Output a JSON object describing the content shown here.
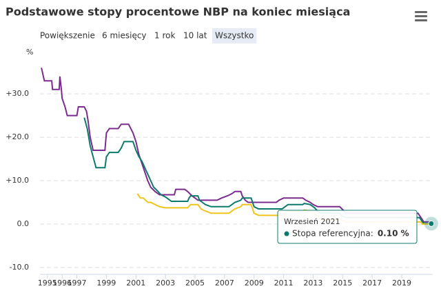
{
  "title": "Podstawowe stopy procentowe NBP na koniec miesiąca",
  "zoom": {
    "label": "Powiększenie",
    "buttons": [
      "6 miesięcy",
      "1 rok",
      "10 lat",
      "Wszystko"
    ],
    "selected": 3
  },
  "chart_data": {
    "type": "line",
    "y_label": "%",
    "xlim": [
      1994.5,
      2021.1
    ],
    "xticks": [
      1995,
      1996,
      1997,
      1999,
      2001,
      2003,
      2005,
      2007,
      2009,
      2011,
      2013,
      2015,
      2017,
      2019
    ],
    "ylim": [
      -12,
      37
    ],
    "yticks": [
      {
        "value": -10,
        "label": "-10.0"
      },
      {
        "value": 0,
        "label": "0.0"
      },
      {
        "value": 10,
        "label": "+10.0"
      },
      {
        "value": 20,
        "label": "+20.0"
      },
      {
        "value": 30,
        "label": "+30.0"
      }
    ],
    "grid": true,
    "series": [
      {
        "color": "#7b2b8f",
        "x": [
          1994.6,
          1994.8,
          1995.3,
          1995.35,
          1995.8,
          1995.85,
          1995.95,
          1996.0,
          1996.2,
          1996.35,
          1997.0,
          1997.1,
          1997.5,
          1997.65,
          1997.75,
          1997.9,
          1998.1,
          1998.9,
          1999.0,
          1999.2,
          1999.8,
          2000.0,
          2000.5,
          2000.8,
          2001.0,
          2001.2,
          2001.4,
          2001.6,
          2001.8,
          2002.0,
          2002.3,
          2002.6,
          2003.6,
          2003.7,
          2004.3,
          2004.5,
          2004.8,
          2005.2,
          2006.5,
          2006.8,
          2007.2,
          2007.5,
          2007.7,
          2008.1,
          2008.2,
          2008.4,
          2008.6,
          2010.5,
          2010.7,
          2011.0,
          2012.3,
          2012.5,
          2012.8,
          2013.0,
          2013.3,
          2014.8,
          2015.1,
          2015.2,
          2020.1,
          2020.3,
          2020.5,
          2021.0
        ],
        "values": [
          36,
          33,
          33,
          31,
          31,
          34,
          31,
          29,
          27,
          25,
          25,
          27,
          27,
          26,
          24,
          20,
          17,
          17,
          21,
          22,
          22,
          23,
          23,
          21,
          19,
          16,
          14,
          12,
          10,
          8.5,
          7.5,
          6.75,
          6.75,
          8,
          8,
          7.5,
          6.5,
          5.5,
          5.5,
          6,
          6.5,
          7,
          7.5,
          7.5,
          6.5,
          5.5,
          5,
          5,
          5.5,
          6,
          6,
          5.5,
          5,
          4.5,
          4,
          4,
          3,
          2.5,
          2.5,
          1.5,
          0.5,
          0.5
        ]
      },
      {
        "name": "Stopa referencyjna",
        "color": "#0b7a6b",
        "x": [
          1997.5,
          1997.7,
          1997.9,
          1998.1,
          1998.3,
          1998.9,
          1999.0,
          1999.2,
          1999.8,
          2000.0,
          2000.2,
          2000.8,
          2001.0,
          2001.2,
          2001.4,
          2001.6,
          2001.8,
          2002.0,
          2002.2,
          2002.5,
          2002.7,
          2003.0,
          2003.2,
          2003.4,
          2004.5,
          2004.6,
          2004.7,
          2005.2,
          2005.3,
          2005.5,
          2005.7,
          2006.1,
          2007.3,
          2007.5,
          2007.7,
          2008.1,
          2008.2,
          2008.8,
          2008.9,
          2009.0,
          2009.3,
          2010.9,
          2011.1,
          2011.3,
          2012.3,
          2012.4,
          2012.8,
          2013.0,
          2013.1,
          2013.3,
          2013.5,
          2014.8,
          2014.9,
          2015.2,
          2020.2,
          2020.3,
          2020.4,
          2020.5,
          2021.0
        ],
        "values": [
          24.5,
          22,
          18,
          15.5,
          13,
          13,
          15.5,
          16.5,
          16.5,
          17.5,
          19,
          19,
          17,
          15.5,
          14.5,
          13,
          11.5,
          10,
          8.5,
          7.5,
          6.75,
          6.25,
          5.75,
          5.25,
          5.25,
          6,
          6.5,
          6.5,
          5.5,
          5,
          4.5,
          4,
          4,
          4.5,
          5,
          5.5,
          6,
          6,
          5,
          4,
          3.5,
          3.5,
          4,
          4.5,
          4.5,
          4.75,
          4.5,
          4,
          3.75,
          3,
          2.5,
          2.5,
          2,
          1.5,
          1.5,
          1,
          0.5,
          0.1,
          0.1
        ]
      },
      {
        "color": "#f0c419",
        "x": [
          2001.1,
          2001.3,
          2001.5,
          2001.8,
          2002.0,
          2002.3,
          2002.6,
          2003.0,
          2004.5,
          2004.7,
          2005.2,
          2005.4,
          2005.7,
          2006.1,
          2007.3,
          2007.5,
          2007.7,
          2008.1,
          2008.2,
          2008.8,
          2008.9,
          2009.0,
          2009.3,
          2010.9,
          2011.1,
          2011.3,
          2012.3,
          2012.4,
          2012.8,
          2013.0,
          2013.3,
          2013.5,
          2014.8,
          2015.2,
          2020.3,
          2020.4,
          2021.0
        ],
        "values": [
          7,
          6,
          6,
          5,
          5,
          4.5,
          4,
          3.75,
          3.75,
          4.5,
          4.5,
          3.5,
          3,
          2.5,
          2.5,
          3,
          3.5,
          4,
          4.5,
          4.5,
          3.5,
          2.5,
          2,
          2,
          2.5,
          3,
          3,
          3.25,
          3,
          2.5,
          2,
          1,
          1,
          0.5,
          0.5,
          0,
          0
        ]
      }
    ],
    "tooltip": {
      "date": "Wrzesień 2021",
      "label": "Stopa referencyjna:",
      "value": 0.1,
      "value_label": "0.10 %"
    }
  }
}
